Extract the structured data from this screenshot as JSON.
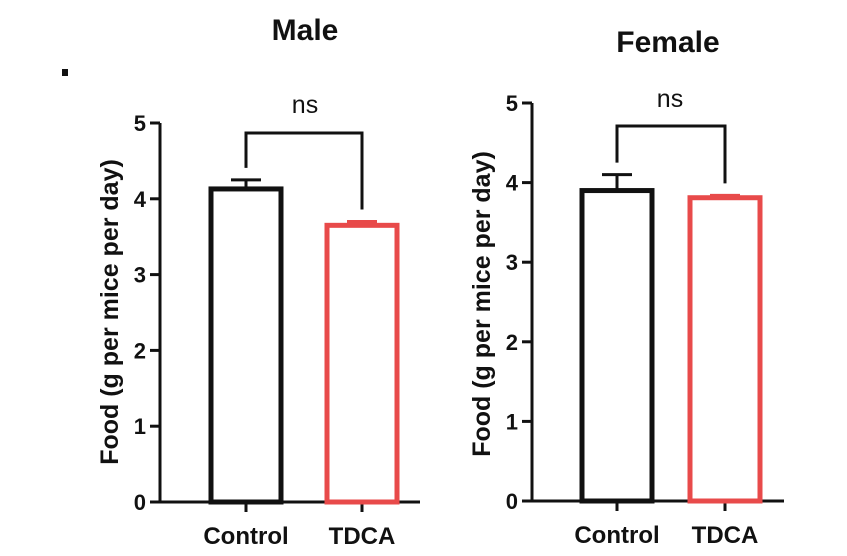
{
  "chart_data": [
    {
      "type": "bar",
      "title": "Male",
      "categories": [
        "Control",
        "TDCA"
      ],
      "values": [
        4.13,
        3.65
      ],
      "errors": [
        0.12,
        0.05
      ],
      "ylabel": "Food (g per mice per day)",
      "xlabel": "",
      "ylim": [
        0,
        5
      ],
      "yticks": [
        "0",
        "1",
        "2",
        "3",
        "4",
        "5"
      ],
      "significance": "ns",
      "colors": [
        "#111111",
        "#e84a4a"
      ]
    },
    {
      "type": "bar",
      "title": "Female",
      "categories": [
        "Control",
        "TDCA"
      ],
      "values": [
        3.9,
        3.81
      ],
      "errors": [
        0.2,
        0.03
      ],
      "ylabel": "Food (g per mice per day)",
      "xlabel": "",
      "ylim": [
        0,
        5
      ],
      "yticks": [
        "0",
        "1",
        "2",
        "3",
        "4",
        "5"
      ],
      "significance": "ns",
      "colors": [
        "#111111",
        "#e84a4a"
      ]
    }
  ],
  "panel_marker": "."
}
